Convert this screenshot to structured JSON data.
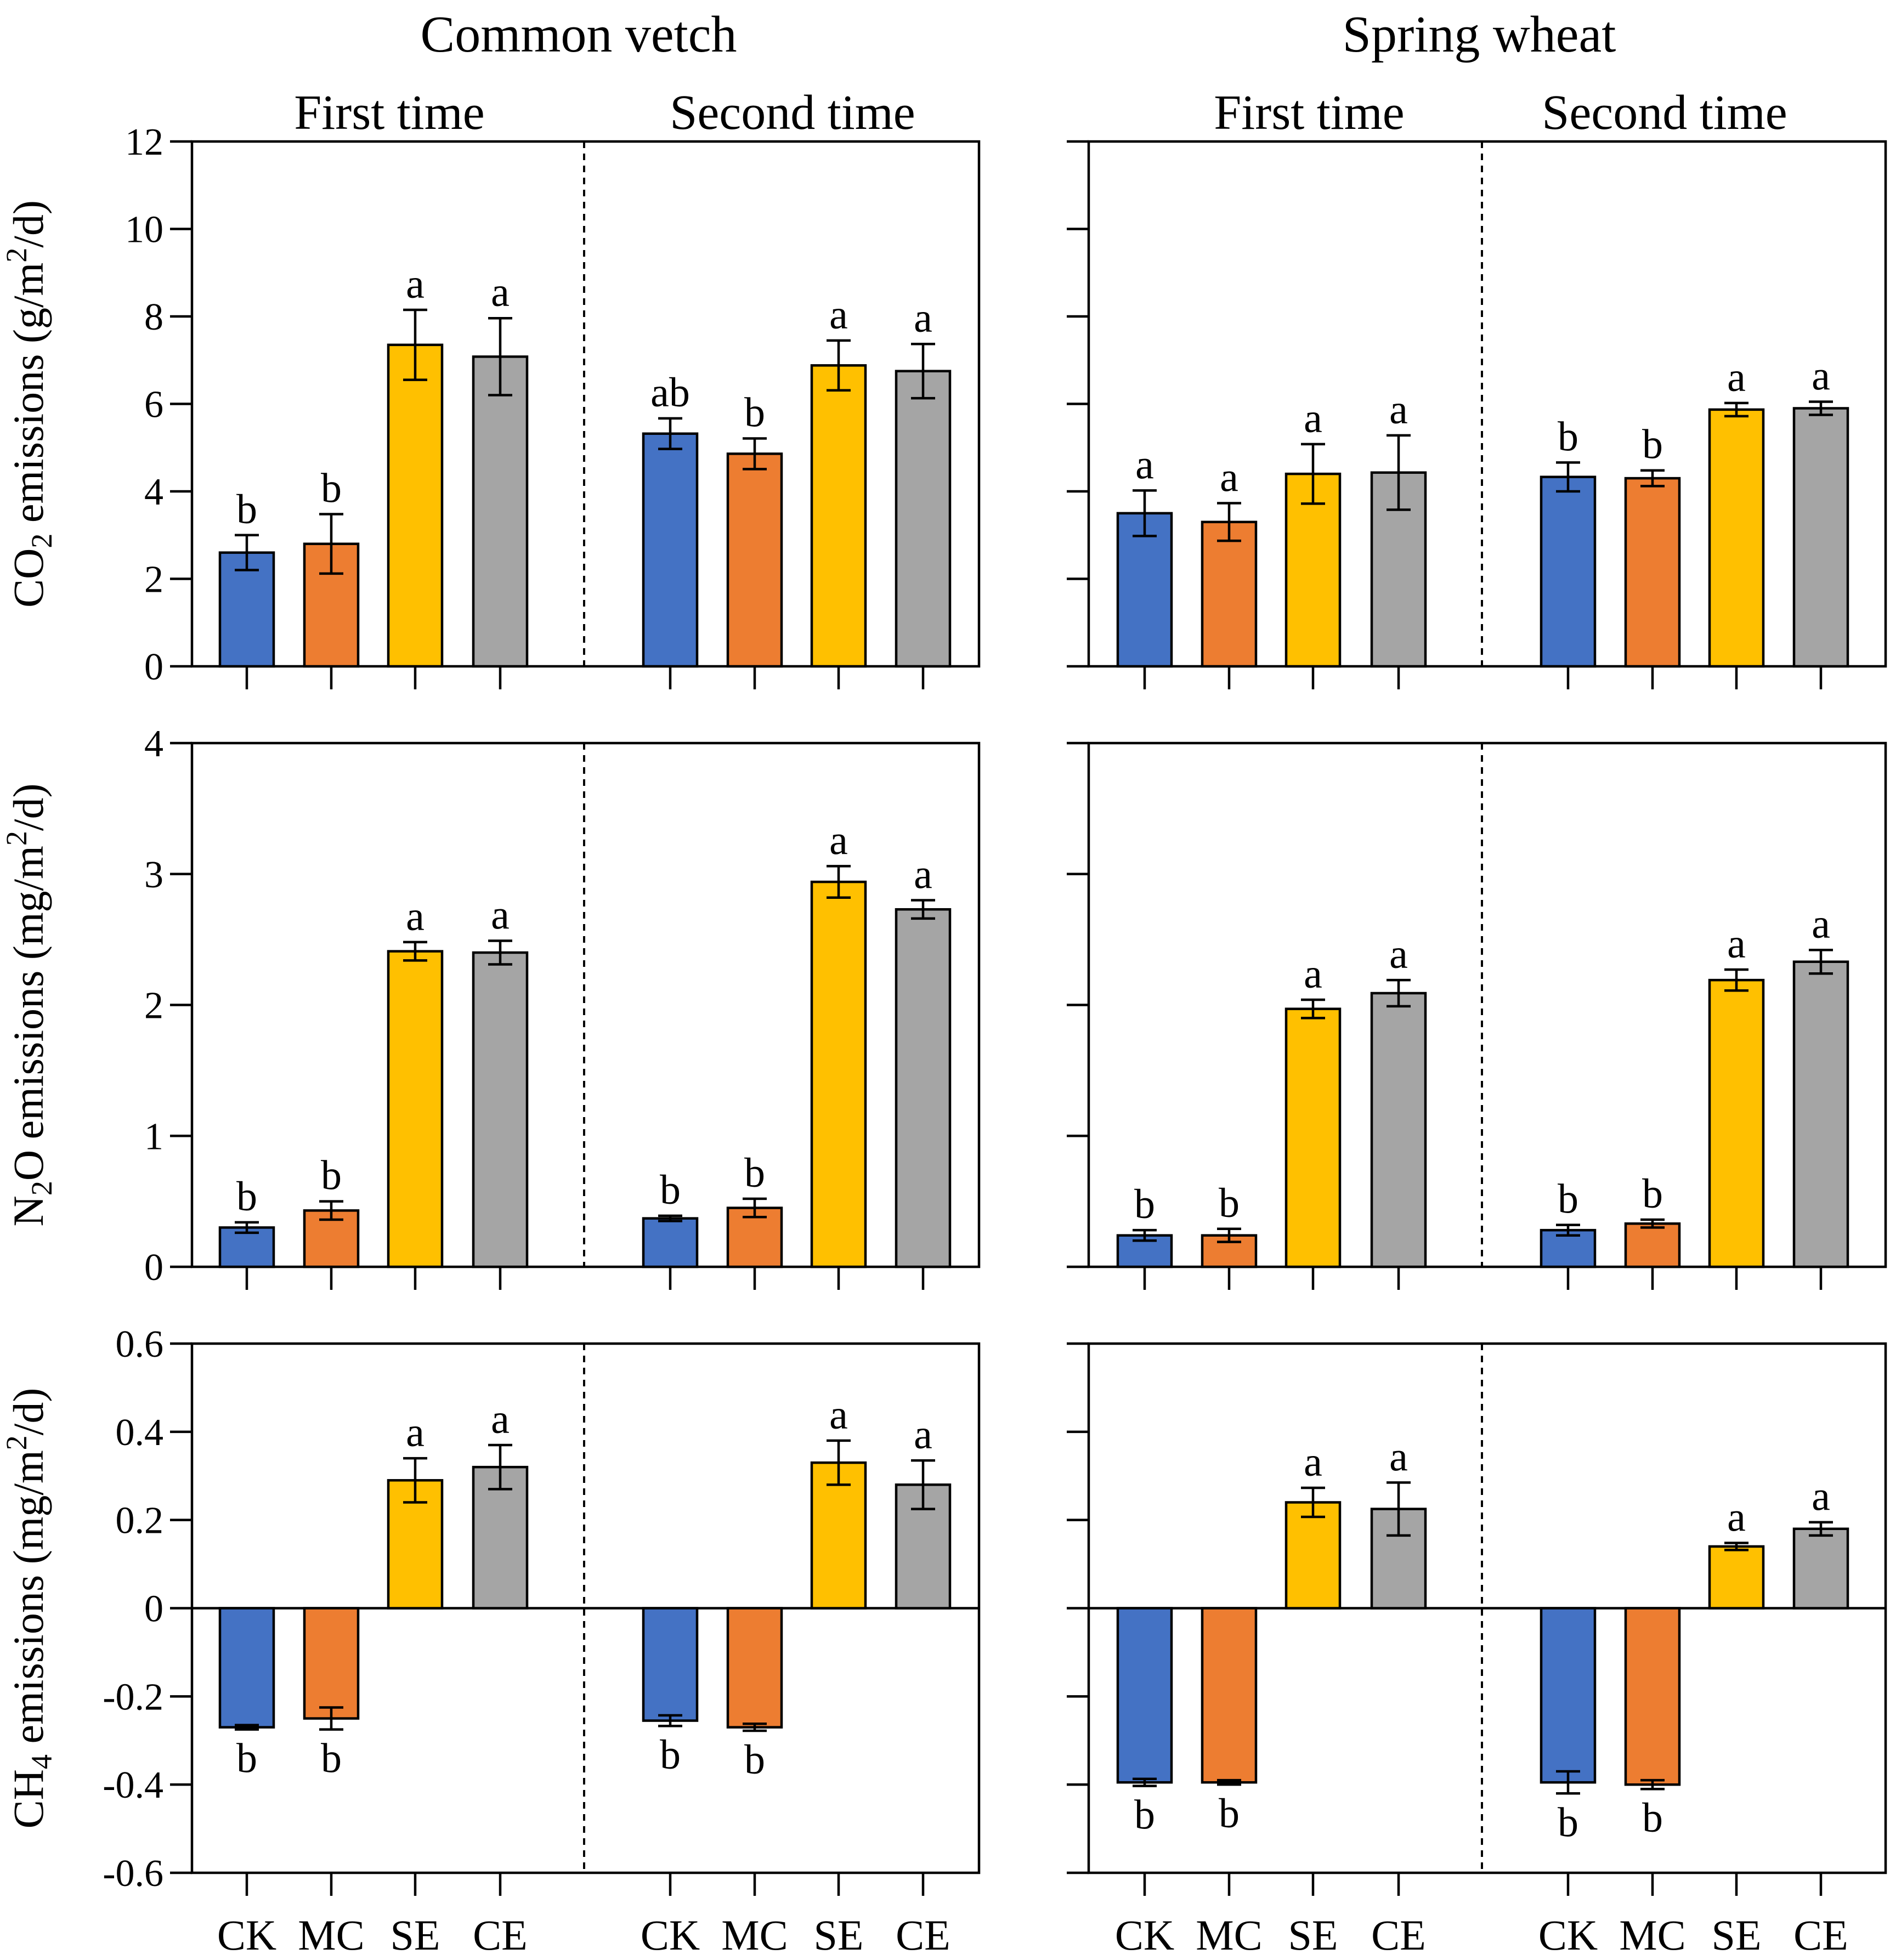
{
  "crops": [
    "Common vetch",
    "Spring wheat"
  ],
  "groups": [
    "First time",
    "Second time"
  ],
  "categories": [
    "CK",
    "MC",
    "SE",
    "CE"
  ],
  "colors": {
    "CK": "#4472c4",
    "MC": "#ed7d31",
    "SE": "#ffc000",
    "CE": "#a5a5a5"
  },
  "chart_data": [
    {
      "type": "bar",
      "gas": "CO2",
      "ylabel_parts": {
        "pre": "CO",
        "sub": "2",
        "mid": " emissions (g/m",
        "sup": "2",
        "post": "/d)"
      },
      "ylim": [
        0,
        12
      ],
      "yticks": [
        0,
        2,
        4,
        6,
        8,
        10,
        12
      ],
      "ytick_labels": [
        "0",
        "2",
        "4",
        "6",
        "8",
        "10",
        "12"
      ],
      "panels": [
        {
          "crop": "Common vetch",
          "groups": [
            {
              "name": "First time",
              "values": [
                2.6,
                2.8,
                7.35,
                7.08
              ],
              "errors": [
                0.4,
                0.68,
                0.8,
                0.88
              ],
              "letters": [
                "b",
                "b",
                "a",
                "a"
              ]
            },
            {
              "name": "Second time",
              "values": [
                5.32,
                4.86,
                6.88,
                6.75
              ],
              "errors": [
                0.35,
                0.35,
                0.57,
                0.62
              ],
              "letters": [
                "ab",
                "b",
                "a",
                "a"
              ]
            }
          ]
        },
        {
          "crop": "Spring wheat",
          "groups": [
            {
              "name": "First time",
              "values": [
                3.5,
                3.3,
                4.4,
                4.43
              ],
              "errors": [
                0.52,
                0.43,
                0.68,
                0.85
              ],
              "letters": [
                "a",
                "a",
                "a",
                "a"
              ]
            },
            {
              "name": "Second time",
              "values": [
                4.33,
                4.3,
                5.87,
                5.9
              ],
              "errors": [
                0.33,
                0.18,
                0.15,
                0.15
              ],
              "letters": [
                "b",
                "b",
                "a",
                "a"
              ]
            }
          ]
        }
      ]
    },
    {
      "type": "bar",
      "gas": "N2O",
      "ylabel_parts": {
        "pre": "N",
        "sub": "2",
        "mid": "O emissions (mg/m",
        "sup": "2",
        "post": "/d)"
      },
      "ylim": [
        0,
        4
      ],
      "yticks": [
        0,
        1,
        2,
        3,
        4
      ],
      "ytick_labels": [
        "0",
        "1",
        "2",
        "3",
        "4"
      ],
      "panels": [
        {
          "crop": "Common vetch",
          "groups": [
            {
              "name": "First time",
              "values": [
                0.3,
                0.43,
                2.41,
                2.4
              ],
              "errors": [
                0.04,
                0.07,
                0.07,
                0.09
              ],
              "letters": [
                "b",
                "b",
                "a",
                "a"
              ]
            },
            {
              "name": "Second time",
              "values": [
                0.37,
                0.45,
                2.94,
                2.73
              ],
              "errors": [
                0.02,
                0.07,
                0.12,
                0.07
              ],
              "letters": [
                "b",
                "b",
                "a",
                "a"
              ]
            }
          ]
        },
        {
          "crop": "Spring wheat",
          "groups": [
            {
              "name": "First time",
              "values": [
                0.24,
                0.24,
                1.97,
                2.09
              ],
              "errors": [
                0.04,
                0.05,
                0.07,
                0.1
              ],
              "letters": [
                "b",
                "b",
                "a",
                "a"
              ]
            },
            {
              "name": "Second time",
              "values": [
                0.28,
                0.33,
                2.19,
                2.33
              ],
              "errors": [
                0.04,
                0.03,
                0.08,
                0.09
              ],
              "letters": [
                "b",
                "b",
                "a",
                "a"
              ]
            }
          ]
        }
      ]
    },
    {
      "type": "bar",
      "gas": "CH4",
      "ylabel_parts": {
        "pre": "CH",
        "sub": "4",
        "mid": " emissions (mg/m",
        "sup": "2",
        "post": "/d)"
      },
      "ylim": [
        -0.6,
        0.6
      ],
      "yticks": [
        -0.6,
        -0.4,
        -0.2,
        0,
        0.2,
        0.4,
        0.6
      ],
      "ytick_labels": [
        "-0.6",
        "-0.4",
        "-0.2",
        "0",
        "0.2",
        "0.4",
        "0.6"
      ],
      "panels": [
        {
          "crop": "Common vetch",
          "groups": [
            {
              "name": "First time",
              "values": [
                -0.27,
                -0.25,
                0.29,
                0.32
              ],
              "errors": [
                0.005,
                0.025,
                0.05,
                0.05
              ],
              "letters": [
                "b",
                "b",
                "a",
                "a"
              ]
            },
            {
              "name": "Second time",
              "values": [
                -0.255,
                -0.27,
                0.33,
                0.28
              ],
              "errors": [
                0.012,
                0.008,
                0.05,
                0.055
              ],
              "letters": [
                "b",
                "b",
                "a",
                "a"
              ]
            }
          ]
        },
        {
          "crop": "Spring wheat",
          "groups": [
            {
              "name": "First time",
              "values": [
                -0.395,
                -0.395,
                0.24,
                0.225
              ],
              "errors": [
                0.008,
                0.005,
                0.033,
                0.06
              ],
              "letters": [
                "b",
                "b",
                "a",
                "a"
              ]
            },
            {
              "name": "Second time",
              "values": [
                -0.395,
                -0.4,
                0.14,
                0.18
              ],
              "errors": [
                0.025,
                0.01,
                0.008,
                0.015
              ],
              "letters": [
                "b",
                "b",
                "a",
                "a"
              ]
            }
          ]
        }
      ]
    }
  ]
}
